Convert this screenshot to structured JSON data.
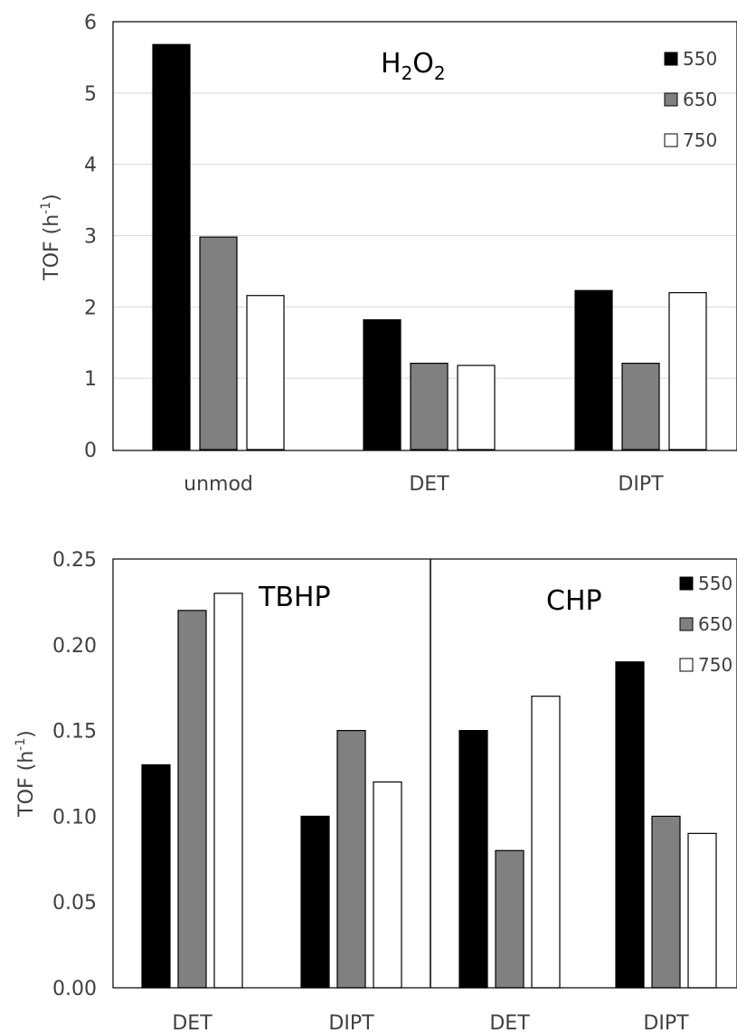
{
  "colors": {
    "550": "#000000",
    "650": "#808080",
    "750": "#ffffff",
    "grid": "#d9d9d9",
    "text": "#404040"
  },
  "chart_data": [
    {
      "type": "bar",
      "title_main": "H",
      "title_sub1": "2",
      "title_mid": "O",
      "title_sub2": "2",
      "ylabel_main": "TOF (h",
      "ylabel_sup": "-1",
      "ylabel_end": ")",
      "categories": [
        "unmod",
        "DET",
        "DIPT"
      ],
      "series": [
        {
          "name": "550",
          "values": [
            5.68,
            1.82,
            2.23
          ]
        },
        {
          "name": "650",
          "values": [
            2.98,
            1.21,
            1.21
          ]
        },
        {
          "name": "750",
          "values": [
            2.16,
            1.18,
            2.2
          ]
        }
      ],
      "ylim": [
        0,
        6
      ],
      "yticks": [
        "0",
        "1",
        "2",
        "3",
        "4",
        "5",
        "6"
      ],
      "grid": true,
      "legend_position": "top-right"
    },
    {
      "type": "bar",
      "panel_labels": [
        "TBHP",
        "CHP"
      ],
      "ylabel_main": "TOF (h",
      "ylabel_sup": "-1",
      "ylabel_end": ")",
      "categories": [
        "DET",
        "DIPT",
        "DET",
        "DIPT"
      ],
      "series": [
        {
          "name": "550",
          "values": [
            0.13,
            0.1,
            0.15,
            0.19
          ]
        },
        {
          "name": "650",
          "values": [
            0.22,
            0.15,
            0.08,
            0.1
          ]
        },
        {
          "name": "750",
          "values": [
            0.23,
            0.12,
            0.17,
            0.09
          ]
        }
      ],
      "ylim": [
        0,
        0.25
      ],
      "yticks": [
        "0.00",
        "0.05",
        "0.10",
        "0.15",
        "0.20",
        "0.25"
      ],
      "grid": false,
      "legend_position": "top-right"
    }
  ]
}
